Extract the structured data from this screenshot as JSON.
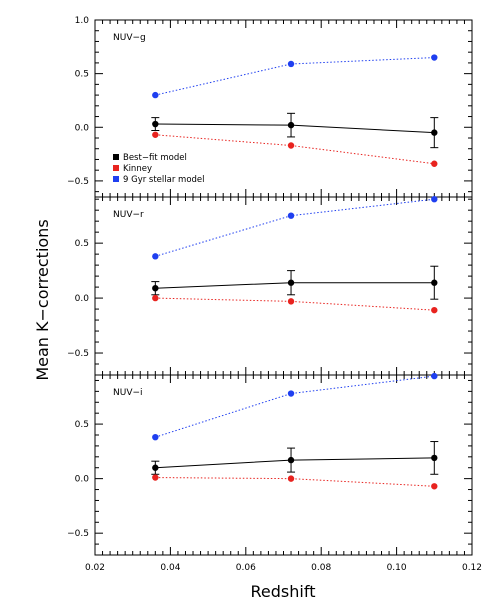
{
  "chart_data": {
    "type": "line",
    "xlabel": "Redshift",
    "ylabel": "Mean K−corrections",
    "xlim": [
      0.02,
      0.12
    ],
    "x_ticks": [
      "0.02",
      "0.04",
      "0.06",
      "0.08",
      "0.10",
      "0.12"
    ],
    "y_ticks": [
      "−0.5",
      "0.0",
      "0.5",
      "1.0"
    ],
    "legend": {
      "placement": "lower-left of top panel",
      "entries": [
        {
          "label": "Best−fit model",
          "color": "#000000"
        },
        {
          "label": "Kinney",
          "color": "#e8231f"
        },
        {
          "label": "9 Gyr stellar model",
          "color": "#1f3ff0"
        }
      ]
    },
    "x": [
      0.036,
      0.072,
      0.11
    ],
    "panels": [
      {
        "label": "NUV−g",
        "ylim": [
          -0.65,
          1.0
        ],
        "series": [
          {
            "name": "Best−fit model",
            "color": "#000000",
            "style": "solid",
            "values": [
              0.03,
              0.02,
              -0.05
            ],
            "errors": [
              0.06,
              0.11,
              0.14
            ]
          },
          {
            "name": "Kinney",
            "color": "#e8231f",
            "style": "dotted",
            "values": [
              -0.07,
              -0.17,
              -0.34
            ]
          },
          {
            "name": "9 Gyr stellar model",
            "color": "#1f3ff0",
            "style": "dotted",
            "values": [
              0.3,
              0.59,
              0.65
            ]
          }
        ]
      },
      {
        "label": "NUV−r",
        "ylim": [
          -0.7,
          0.92
        ],
        "series": [
          {
            "name": "Best−fit model",
            "color": "#000000",
            "style": "solid",
            "values": [
              0.09,
              0.14,
              0.14
            ],
            "errors": [
              0.06,
              0.11,
              0.15
            ]
          },
          {
            "name": "Kinney",
            "color": "#e8231f",
            "style": "dotted",
            "values": [
              0.0,
              -0.03,
              -0.11
            ]
          },
          {
            "name": "9 Gyr stellar model",
            "color": "#1f3ff0",
            "style": "dotted",
            "values": [
              0.38,
              0.75,
              0.9
            ]
          }
        ]
      },
      {
        "label": "NUV−i",
        "ylim": [
          -0.7,
          0.95
        ],
        "series": [
          {
            "name": "Best−fit model",
            "color": "#000000",
            "style": "solid",
            "values": [
              0.1,
              0.17,
              0.19
            ],
            "errors": [
              0.06,
              0.11,
              0.15
            ]
          },
          {
            "name": "Kinney",
            "color": "#e8231f",
            "style": "dotted",
            "values": [
              0.01,
              0.0,
              -0.07
            ]
          },
          {
            "name": "9 Gyr stellar model",
            "color": "#1f3ff0",
            "style": "dotted",
            "values": [
              0.38,
              0.78,
              0.94
            ]
          }
        ]
      }
    ]
  }
}
